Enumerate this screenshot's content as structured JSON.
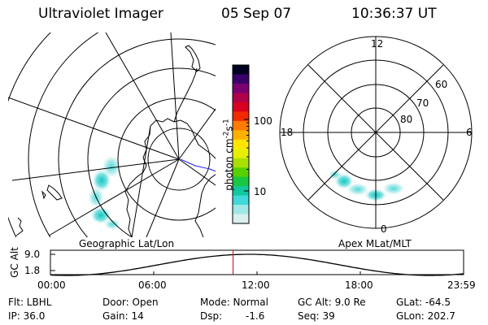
{
  "header": {
    "instrument": "Ultraviolet Imager",
    "date": "05 Sep 07",
    "time": "10:36:37 UT"
  },
  "geo_panel": {
    "label": "Geographic Lat/Lon"
  },
  "polar_panel": {
    "label": "Apex MLat/MLT",
    "mlt_labels": [
      "12",
      "18",
      "6",
      "0"
    ],
    "lat_labels": [
      "60",
      "70",
      "80"
    ]
  },
  "colorbar": {
    "unit_label": "photon cm",
    "unit_sup1": "-2",
    "unit_s": "s",
    "unit_sup2": "-1",
    "ticks": [
      {
        "label": "100",
        "value": 100
      },
      {
        "label": "10",
        "value": 10
      }
    ],
    "colors": [
      "#000020",
      "#3a0068",
      "#7a0070",
      "#b0004a",
      "#d8001e",
      "#f02a00",
      "#ff7a00",
      "#ffb000",
      "#ffe600",
      "#e6f000",
      "#a8e000",
      "#58d000",
      "#18c840",
      "#10c8a0",
      "#40d8d8",
      "#a0e8e8",
      "#d8f0f0"
    ]
  },
  "altitude_plot": {
    "ylabel": "GC Alt",
    "ytick_top": "9.0",
    "ytick_bottom": "1.8",
    "x_ticks": [
      "00:00",
      "06:00",
      "12:00",
      "18:00",
      "23:59"
    ],
    "current_time_hours": 10.61
  },
  "status": {
    "row1": {
      "filter": "Flt: LBHL",
      "door": "Door: Open",
      "mode": "Mode: Normal",
      "gc_alt": "GC Alt: 9.0 Re",
      "glat": "GLat: -64.5"
    },
    "row2": {
      "ip": "IP: 36.0",
      "gain": "Gain: 14",
      "dsp_label": "Dsp:",
      "dsp_value": "-1.6",
      "seq": "Seq: 39",
      "glon": "GLon: 202.7"
    }
  }
}
